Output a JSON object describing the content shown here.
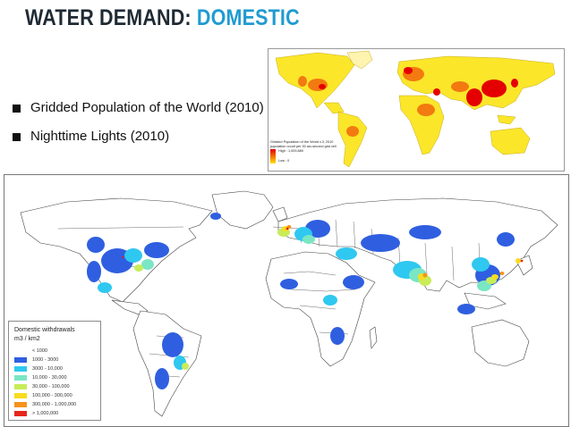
{
  "title": {
    "part1": "WATER DEMAND: ",
    "part2": "DOMESTIC"
  },
  "bullets": [
    {
      "text": "Gridded Population of the World (2010)"
    },
    {
      "text": "Nighttime Lights (2010)"
    }
  ],
  "population_map": {
    "legend_title": "Gridded Population of the World v.3, 2010",
    "legend_subtitle": "population count per 30 arc-second grid cell",
    "high_label": "High : 1,009,880",
    "low_label": "Low : 0",
    "color_high": "#e40000",
    "color_low": "#ffe000"
  },
  "withdrawals_map": {
    "legend_title": "Domestic withdrawals",
    "legend_unit": "m3 / km2",
    "classes": [
      {
        "label": "< 1000",
        "color": "#ffffff"
      },
      {
        "label": "1000 - 3000",
        "color": "#2f5fe0"
      },
      {
        "label": "3000 - 10,000",
        "color": "#2fc8f0"
      },
      {
        "label": "10,000 - 30,000",
        "color": "#7ae6c4"
      },
      {
        "label": "30,000 - 100,000",
        "color": "#c8ec5a"
      },
      {
        "label": "100,000 - 300,000",
        "color": "#f8dc1e"
      },
      {
        "label": "300,000 - 1,000,000",
        "color": "#f5931a"
      },
      {
        "label": "> 1,000,000",
        "color": "#e8261a"
      }
    ]
  }
}
